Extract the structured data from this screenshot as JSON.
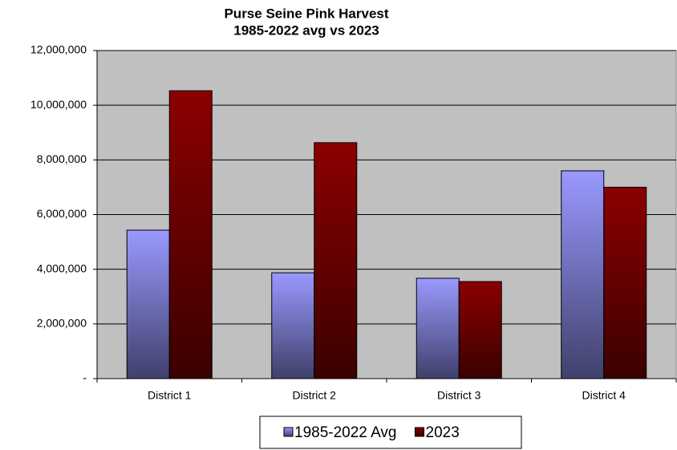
{
  "chart_data": {
    "type": "bar",
    "title": "Purse Seine Pink Harvest",
    "subtitle": "1985-2022  avg vs 2023",
    "categories": [
      "District 1",
      "District 2",
      "District 3",
      "District 4"
    ],
    "series": [
      {
        "name": "1985-2022 Avg",
        "color": "#9999ff",
        "values": [
          5430000,
          3870000,
          3670000,
          7600000
        ]
      },
      {
        "name": "2023",
        "color": "#8b0000",
        "values": [
          10530000,
          8630000,
          3550000,
          7000000
        ]
      }
    ],
    "ylim": [
      0,
      12000000
    ],
    "yticks": [
      {
        "value": 0,
        "label": "-"
      },
      {
        "value": 2000000,
        "label": "2,000,000"
      },
      {
        "value": 4000000,
        "label": "4,000,000"
      },
      {
        "value": 6000000,
        "label": "6,000,000"
      },
      {
        "value": 8000000,
        "label": "8,000,000"
      },
      {
        "value": 10000000,
        "label": "10,000,000"
      },
      {
        "value": 12000000,
        "label": "12,000,000"
      }
    ],
    "grid": true,
    "legend": "bottom"
  }
}
